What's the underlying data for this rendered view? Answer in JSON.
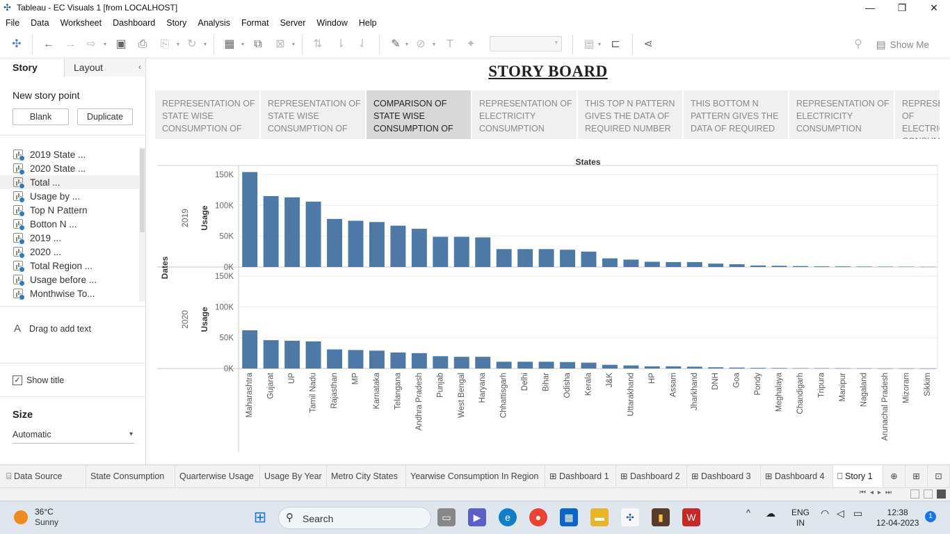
{
  "window": {
    "title": "Tableau - EC Visuals 1 [from LOCALHOST]",
    "controls": [
      "—",
      "❐",
      "✕"
    ]
  },
  "menu": [
    "File",
    "Data",
    "Worksheet",
    "Dashboard",
    "Story",
    "Analysis",
    "Format",
    "Server",
    "Window",
    "Help"
  ],
  "toolbar": {
    "show_me": "Show Me"
  },
  "left_pane": {
    "tab_story": "Story",
    "tab_layout": "Layout",
    "new_story_point": "New story point",
    "blank_button": "Blank",
    "duplicate_button": "Duplicate",
    "sheets": [
      "2019 State ...",
      "2020 State ...",
      "Total ...",
      "Usage by ...",
      "Top N Pattern",
      "Botton N ...",
      "2019 ...",
      "2020 ...",
      "Total Region ...",
      "Usage before ...",
      "Monthwise To..."
    ],
    "drag_to_add_text": "Drag to add text",
    "show_title": "Show title",
    "size_label": "Size",
    "size_value": "Automatic"
  },
  "story": {
    "title": "STORY BOARD",
    "captions": [
      "REPRESENTATION OF STATE WISE CONSUMPTION OF",
      "REPRESENTATION OF STATE WISE CONSUMPTION OF",
      "COMPARISON OF STATE WISE CONSUMPTION OF",
      "REPRESENTATION OF ELECTRICITY CONSUMPTION",
      "THIS TOP N PATTERN GIVES THE DATA OF REQUIRED NUMBER",
      "THIS BOTTOM N PATTERN GIVES THE DATA OF REQUIRED",
      "REPRESENTATION OF ELECTRICITY CONSUMPTION",
      "REPRESENTATION OF ELECTRICITY CONSUMPTION"
    ],
    "active_caption": 2
  },
  "chart_data": {
    "type": "bar",
    "title": "States",
    "ylabel": "Usage",
    "row_dimension": "Dates",
    "categories": [
      "Maharashtra",
      "Gujarat",
      "UP",
      "Tamil Nadu",
      "Rajasthan",
      "MP",
      "Karnataka",
      "Telangana",
      "Andhra Pradesh",
      "Punjab",
      "West Bengal",
      "Haryana",
      "Chhattisgarh",
      "Delhi",
      "Bihar",
      "Odisha",
      "Kerala",
      "J&K",
      "Uttarakhand",
      "HP",
      "Assam",
      "Jharkhand",
      "DNH",
      "Goa",
      "Pondy",
      "Meghalaya",
      "Chandigarh",
      "Tripura",
      "Manipur",
      "Nagaland",
      "Arunachal Pradesh",
      "Mizoram",
      "Sikkim"
    ],
    "series": [
      {
        "name": "2019",
        "values": [
          154000,
          115000,
          113000,
          106000,
          78000,
          75000,
          73000,
          67000,
          62000,
          49000,
          49000,
          48000,
          29000,
          29000,
          29000,
          28000,
          25000,
          14000,
          12000,
          8500,
          8000,
          8000,
          5500,
          4500,
          2500,
          2000,
          1500,
          1000,
          1000,
          800,
          700,
          600,
          400
        ]
      },
      {
        "name": "2020",
        "values": [
          62000,
          46000,
          45000,
          44000,
          31000,
          30000,
          29000,
          26000,
          25000,
          20000,
          19000,
          19000,
          11000,
          11000,
          11000,
          10500,
          9500,
          6000,
          5000,
          3500,
          3500,
          3000,
          2000,
          1500,
          1000,
          800,
          600,
          600,
          400,
          300,
          200,
          200,
          100
        ]
      }
    ],
    "yticks": [
      "0K",
      "50K",
      "100K",
      "150K"
    ],
    "ylim": [
      0,
      160000
    ],
    "bar_color": "#4e79a7"
  },
  "bottom_tabs": {
    "data_source": "Data Source",
    "sheets": [
      "State Consumption",
      "Quarterwise Usage",
      "Usage By Year",
      "Metro City States",
      "Yearwise Consumption In Region"
    ],
    "dashboards": [
      "Dashboard 1",
      "Dashboard 2",
      "Dashboard 3",
      "Dashboard 4"
    ],
    "story": "Story 1"
  },
  "taskbar": {
    "temperature": "36°C",
    "weather": "Sunny",
    "search": "Search",
    "language": "ENG",
    "region": "IN",
    "time": "12:38",
    "date": "12-04-2023",
    "notification_count": "1"
  }
}
